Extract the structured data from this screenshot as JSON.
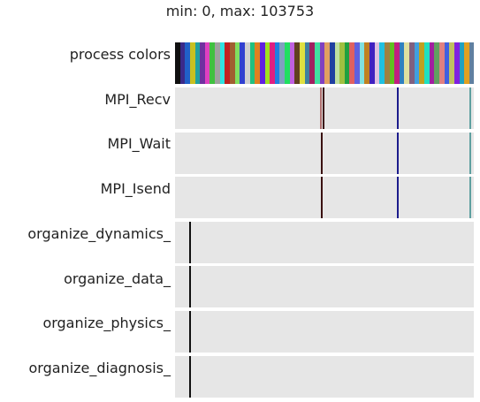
{
  "range_label": "min: 0, max: 103753",
  "process_colors": {
    "label": "process colors",
    "swatches": [
      "#101010",
      "#3a2a8a",
      "#2060c8",
      "#c8c020",
      "#20a0a0",
      "#7030a0",
      "#e040c0",
      "#40c040",
      "#a0a0a0",
      "#30e0e0",
      "#c02020",
      "#a06030",
      "#80e060",
      "#3040d0",
      "#d0d0d0",
      "#20c080",
      "#e08020",
      "#6020e0",
      "#a0e020",
      "#e02080",
      "#2080e0",
      "#80a0c0",
      "#20e060",
      "#c060e0",
      "#604020",
      "#e0e040",
      "#4080a0",
      "#a02060",
      "#40e0a0",
      "#8040c0",
      "#e0a060",
      "#2040a0",
      "#c0e0a0",
      "#a0c040",
      "#20a040",
      "#e06060",
      "#6060e0",
      "#80e0e0",
      "#c08020",
      "#4020c0",
      "#e0c0e0",
      "#20c0e0",
      "#a08040",
      "#60c020",
      "#c02080",
      "#3080c0",
      "#e0e0a0",
      "#806080",
      "#40a0e0",
      "#c0a020",
      "#20e0c0",
      "#a020a0",
      "#60a060",
      "#e08080",
      "#4060e0",
      "#c0c060",
      "#8020e0",
      "#20a0c0",
      "#e0a020",
      "#6080a0"
    ]
  },
  "tracks": [
    {
      "label": "MPI_Recv",
      "events": [
        {
          "t": 50230,
          "color": "#b07070"
        },
        {
          "t": 51120,
          "color": "#3a1010"
        },
        {
          "t": 77020,
          "color": "#1c1c8c"
        },
        {
          "t": 102130,
          "color": "#5fa0a0"
        }
      ]
    },
    {
      "label": "MPI_Wait",
      "events": [
        {
          "t": 50540,
          "color": "#3a1010"
        },
        {
          "t": 77020,
          "color": "#1c1c8c"
        },
        {
          "t": 102130,
          "color": "#5fa0a0"
        }
      ]
    },
    {
      "label": "MPI_Isend",
      "events": [
        {
          "t": 50540,
          "color": "#3a1010"
        },
        {
          "t": 77020,
          "color": "#1c1c8c"
        },
        {
          "t": 102130,
          "color": "#5fa0a0"
        }
      ]
    },
    {
      "label": "organize_dynamics_",
      "events": [
        {
          "t": 4760,
          "color": "#101010"
        }
      ]
    },
    {
      "label": "organize_data_",
      "events": [
        {
          "t": 4760,
          "color": "#101010"
        }
      ]
    },
    {
      "label": "organize_physics_",
      "events": [
        {
          "t": 4760,
          "color": "#101010"
        }
      ]
    },
    {
      "label": "organize_diagnosis_",
      "events": [
        {
          "t": 4760,
          "color": "#101010"
        }
      ]
    }
  ]
}
